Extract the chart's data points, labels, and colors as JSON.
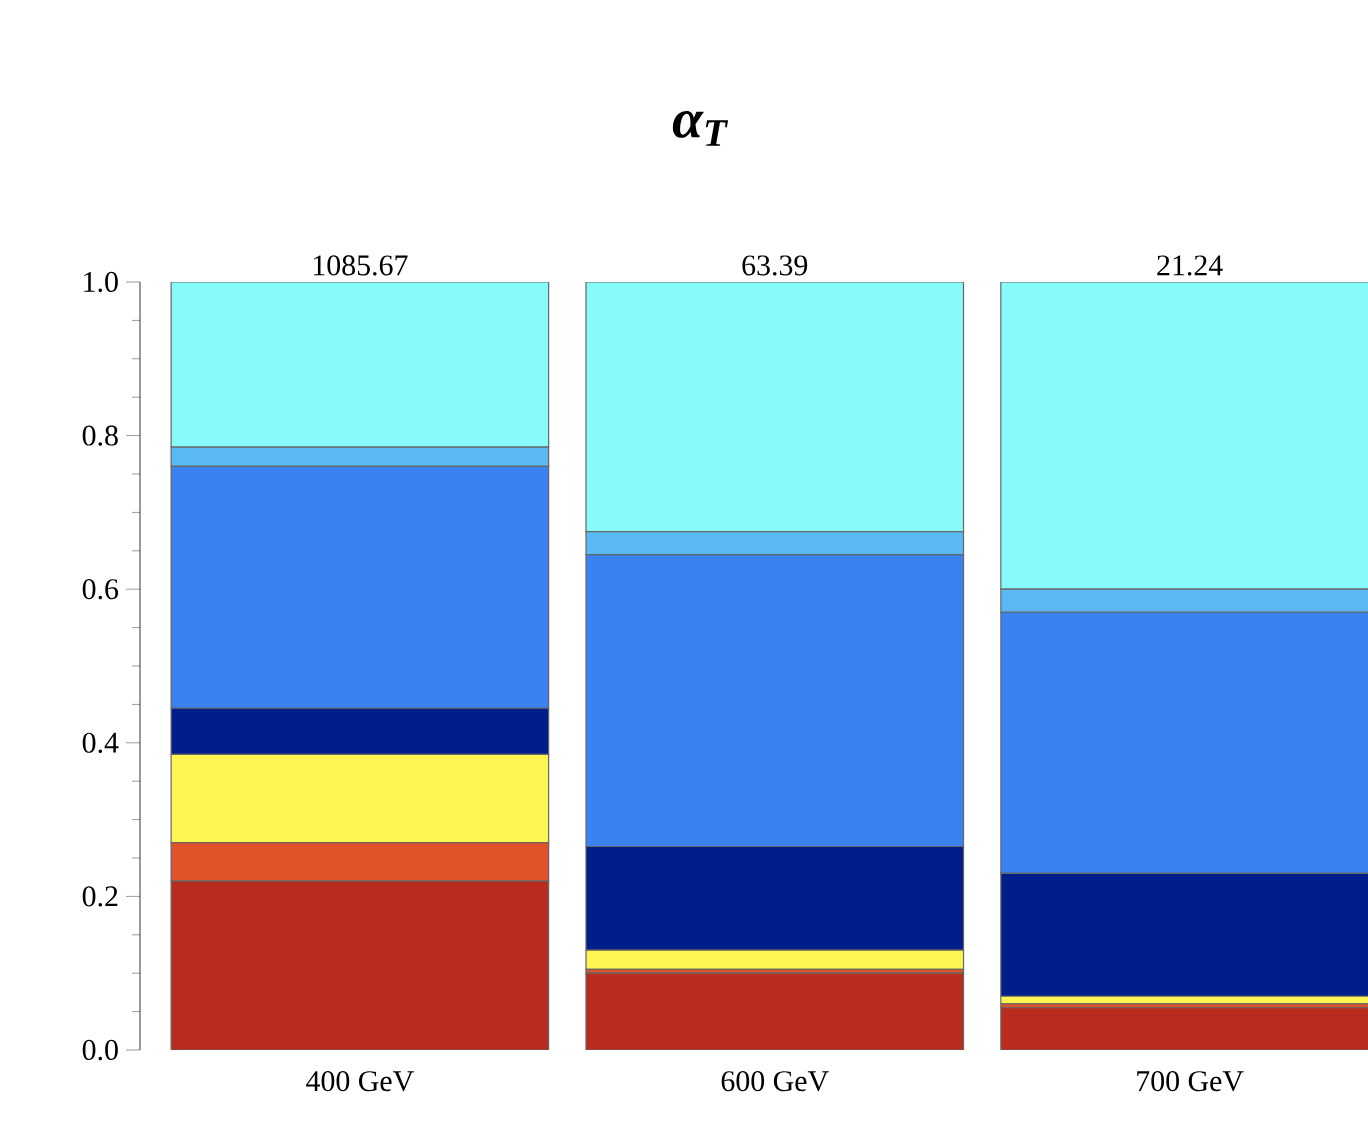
{
  "chart_data": {
    "type": "bar",
    "title": "α$_{T}$",
    "stacked": true,
    "categories": [
      "400 GeV",
      "600 GeV",
      "700 GeV"
    ],
    "annotations": [
      {
        "text": "1085.67",
        "x": "400 GeV",
        "y": 1
      },
      {
        "text": "63.39",
        "x": "600 GeV",
        "y": 1
      },
      {
        "text": "21.24",
        "x": "700 GeV",
        "y": 1
      }
    ],
    "ylim": [
      0,
      1
    ],
    "yticks": [
      {
        "value": 0,
        "label": "0.0"
      },
      {
        "value": 0.2,
        "label": "0.2"
      },
      {
        "value": 0.4,
        "label": "0.4"
      },
      {
        "value": 0.6,
        "label": "0.6"
      },
      {
        "value": 0.8,
        "label": "0.8"
      },
      {
        "value": 1,
        "label": "1.0"
      }
    ],
    "series": [
      {
        "color": "#b92b1e",
        "values": [
          0.22,
          0.1,
          0.055
        ]
      },
      {
        "color": "#e2522a",
        "values": [
          0.05,
          0.005,
          0.005
        ]
      },
      {
        "color": "#fdf552",
        "values": [
          0.115,
          0.025,
          0.01
        ]
      },
      {
        "color": "#001e8a",
        "values": [
          0.06,
          0.135,
          0.16
        ]
      },
      {
        "color": "#3a82f2",
        "values": [
          0.315,
          0.38,
          0.34
        ]
      },
      {
        "color": "#5ab8f2",
        "values": [
          0.025,
          0.03,
          0.03
        ]
      },
      {
        "color": "#87fafa",
        "values": [
          0.215,
          0.325,
          0.4
        ]
      }
    ]
  }
}
